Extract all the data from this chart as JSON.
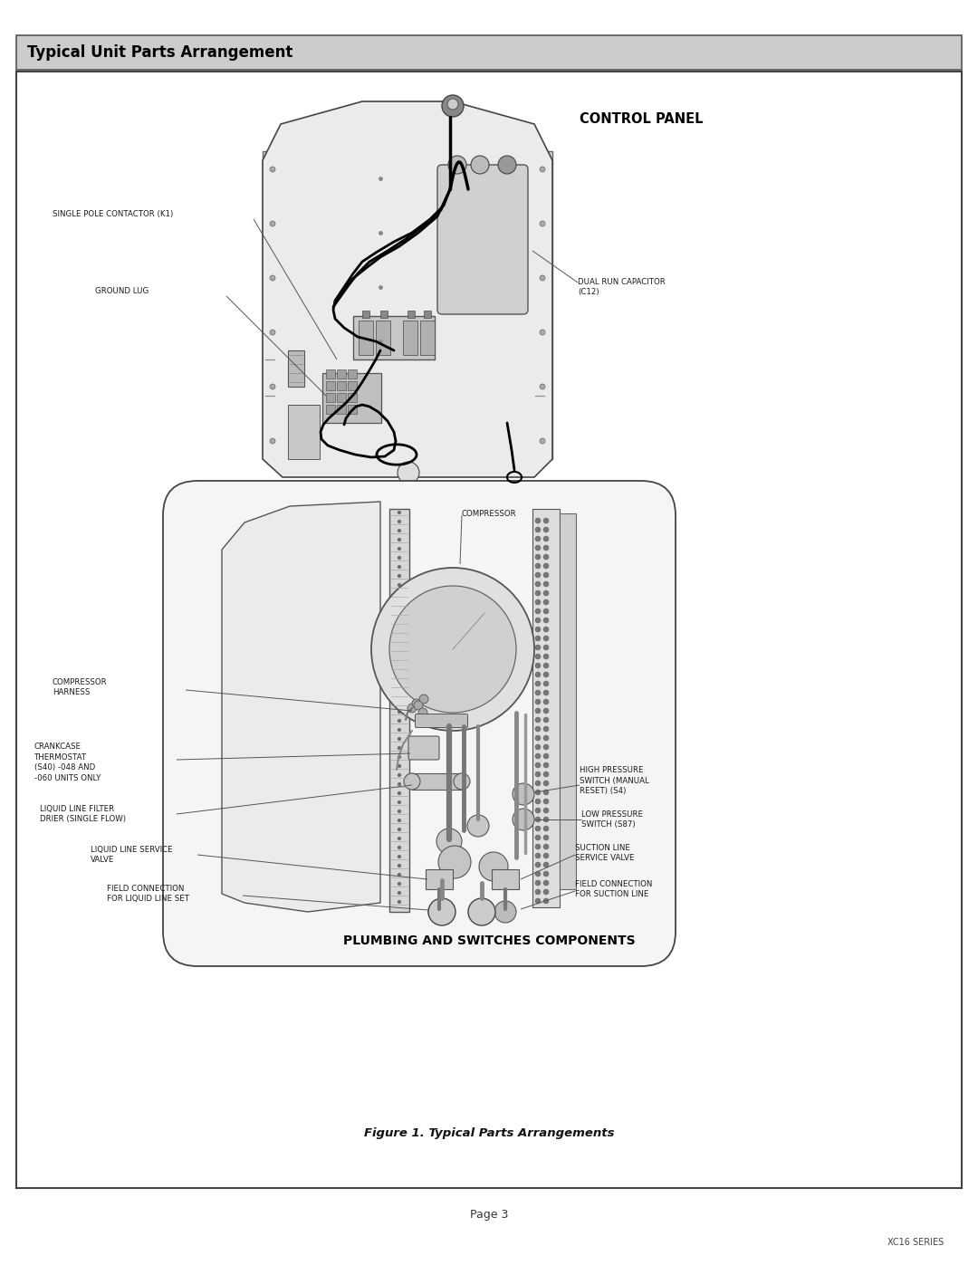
{
  "page_bg": "#ffffff",
  "header_bg": "#cccccc",
  "header_text": "Typical Unit Parts Arrangement",
  "header_fontsize": 12,
  "fig_caption": "Figure 1. Typical Parts Arrangements",
  "page_label": "Page 3",
  "series_label": "XC16 SERIES",
  "section1_title": "CONTROL PANEL",
  "section2_title": "PLUMBING AND SWITCHES COMPONENTS",
  "text_fontsize": 6.2,
  "label_color": "#1a1a1a",
  "line_color": "#555555",
  "body_fill": "#f0f0f0",
  "body_edge": "#3a3a3a",
  "component_fill": "#d8d8d8",
  "component_edge": "#444444"
}
